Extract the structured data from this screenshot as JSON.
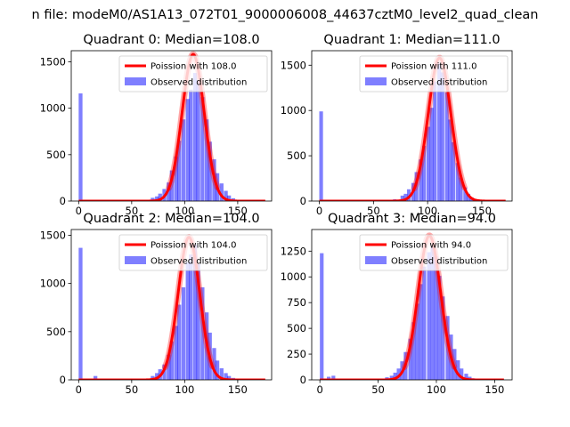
{
  "title": "n file: modeM0/AS1A13_072T01_9000006008_44637cztM0_level2_quad_clean",
  "colors": {
    "observed": "#0000ff",
    "observed_alpha": 0.5,
    "poisson": "#ff0000",
    "axis": "#000000",
    "background": "#ffffff"
  },
  "chart_data": [
    {
      "type": "bar",
      "title": "Quadrant 0: Median=108.0",
      "xlim": [
        -7,
        182
      ],
      "ylim": [
        0,
        1620
      ],
      "xticks": [
        0,
        50,
        100,
        150
      ],
      "yticks": [
        0,
        500,
        1000,
        1500
      ],
      "legend_position": "top-right",
      "bin_width": 3.6,
      "series": [
        {
          "name": "Poission with 108.0",
          "kind": "line",
          "mean": 108,
          "peak": 1580,
          "x_range": [
            0,
            176
          ]
        },
        {
          "name": "Observed distribution",
          "kind": "histogram",
          "bins": [
            [
              0,
              1160
            ],
            [
              14,
              5
            ],
            [
              68,
              35
            ],
            [
              72,
              50
            ],
            [
              75,
              80
            ],
            [
              79,
              130
            ],
            [
              83,
              200
            ],
            [
              86,
              330
            ],
            [
              90,
              480
            ],
            [
              93,
              650
            ],
            [
              97,
              880
            ],
            [
              101,
              1100
            ],
            [
              104,
              1200
            ],
            [
              108,
              1380
            ],
            [
              111,
              1300
            ],
            [
              115,
              1120
            ],
            [
              119,
              880
            ],
            [
              122,
              640
            ],
            [
              126,
              450
            ],
            [
              129,
              300
            ],
            [
              133,
              190
            ],
            [
              137,
              110
            ],
            [
              140,
              60
            ],
            [
              144,
              30
            ]
          ]
        }
      ]
    },
    {
      "type": "bar",
      "title": "Quadrant 1: Median=111.0",
      "xlim": [
        -7,
        178
      ],
      "ylim": [
        0,
        1660
      ],
      "xticks": [
        0,
        50,
        100,
        150
      ],
      "yticks": [
        0,
        500,
        1000,
        1500
      ],
      "legend_position": "top-right",
      "bin_width": 3.4,
      "series": [
        {
          "name": "Poission with 111.0",
          "kind": "line",
          "mean": 111,
          "peak": 1580,
          "x_range": [
            0,
            172
          ]
        },
        {
          "name": "Observed distribution",
          "kind": "histogram",
          "bins": [
            [
              0,
              990
            ],
            [
              65,
              10
            ],
            [
              68,
              20
            ],
            [
              75,
              60
            ],
            [
              78,
              80
            ],
            [
              81,
              130
            ],
            [
              85,
              200
            ],
            [
              88,
              320
            ],
            [
              92,
              460
            ],
            [
              95,
              610
            ],
            [
              99,
              820
            ],
            [
              102,
              1030
            ],
            [
              105,
              1320
            ],
            [
              109,
              1520
            ],
            [
              112,
              1420
            ],
            [
              116,
              1200
            ],
            [
              119,
              900
            ],
            [
              122,
              650
            ],
            [
              126,
              420
            ],
            [
              129,
              260
            ],
            [
              133,
              150
            ],
            [
              136,
              80
            ],
            [
              139,
              40
            ],
            [
              143,
              20
            ]
          ]
        }
      ]
    },
    {
      "type": "bar",
      "title": "Quadrant 2: Median=104.0",
      "xlim": [
        -7,
        182
      ],
      "ylim": [
        0,
        1560
      ],
      "xticks": [
        0,
        50,
        100,
        150
      ],
      "yticks": [
        0,
        500,
        1000,
        1500
      ],
      "legend_position": "top-right",
      "bin_width": 3.6,
      "series": [
        {
          "name": "Poission with 104.0",
          "kind": "line",
          "mean": 104,
          "peak": 1480,
          "x_range": [
            0,
            176
          ]
        },
        {
          "name": "Observed distribution",
          "kind": "histogram",
          "bins": [
            [
              0,
              1370
            ],
            [
              14,
              40
            ],
            [
              68,
              40
            ],
            [
              72,
              70
            ],
            [
              75,
              110
            ],
            [
              79,
              160
            ],
            [
              83,
              260
            ],
            [
              86,
              400
            ],
            [
              90,
              560
            ],
            [
              93,
              780
            ],
            [
              97,
              960
            ],
            [
              101,
              1220
            ],
            [
              104,
              1300
            ],
            [
              108,
              1400
            ],
            [
              111,
              1200
            ],
            [
              115,
              960
            ],
            [
              119,
              700
            ],
            [
              122,
              490
            ],
            [
              126,
              330
            ],
            [
              129,
              200
            ],
            [
              133,
              120
            ],
            [
              137,
              70
            ],
            [
              140,
              40
            ],
            [
              144,
              20
            ],
            [
              147,
              10
            ]
          ]
        }
      ]
    },
    {
      "type": "bar",
      "title": "Quadrant 3: Median=94.0",
      "xlim": [
        -7,
        165
      ],
      "ylim": [
        0,
        1460
      ],
      "xticks": [
        0,
        50,
        100,
        150
      ],
      "yticks": [
        0,
        250,
        500,
        750,
        1000,
        1250
      ],
      "legend_position": "top-right",
      "bin_width": 3.2,
      "series": [
        {
          "name": "Poission with 94.0",
          "kind": "line",
          "mean": 94,
          "peak": 1400,
          "x_range": [
            0,
            158
          ]
        },
        {
          "name": "Observed distribution",
          "kind": "histogram",
          "bins": [
            [
              0,
              1230
            ],
            [
              6,
              30
            ],
            [
              10,
              40
            ],
            [
              56,
              25
            ],
            [
              60,
              40
            ],
            [
              63,
              70
            ],
            [
              66,
              110
            ],
            [
              69,
              180
            ],
            [
              72,
              270
            ],
            [
              76,
              400
            ],
            [
              79,
              560
            ],
            [
              82,
              740
            ],
            [
              85,
              930
            ],
            [
              88,
              1100
            ],
            [
              92,
              1240
            ],
            [
              95,
              1300
            ],
            [
              98,
              1200
            ],
            [
              101,
              1010
            ],
            [
              104,
              810
            ],
            [
              108,
              620
            ],
            [
              111,
              440
            ],
            [
              114,
              300
            ],
            [
              117,
              190
            ],
            [
              120,
              110
            ],
            [
              124,
              60
            ],
            [
              127,
              30
            ],
            [
              130,
              15
            ]
          ]
        }
      ]
    }
  ]
}
